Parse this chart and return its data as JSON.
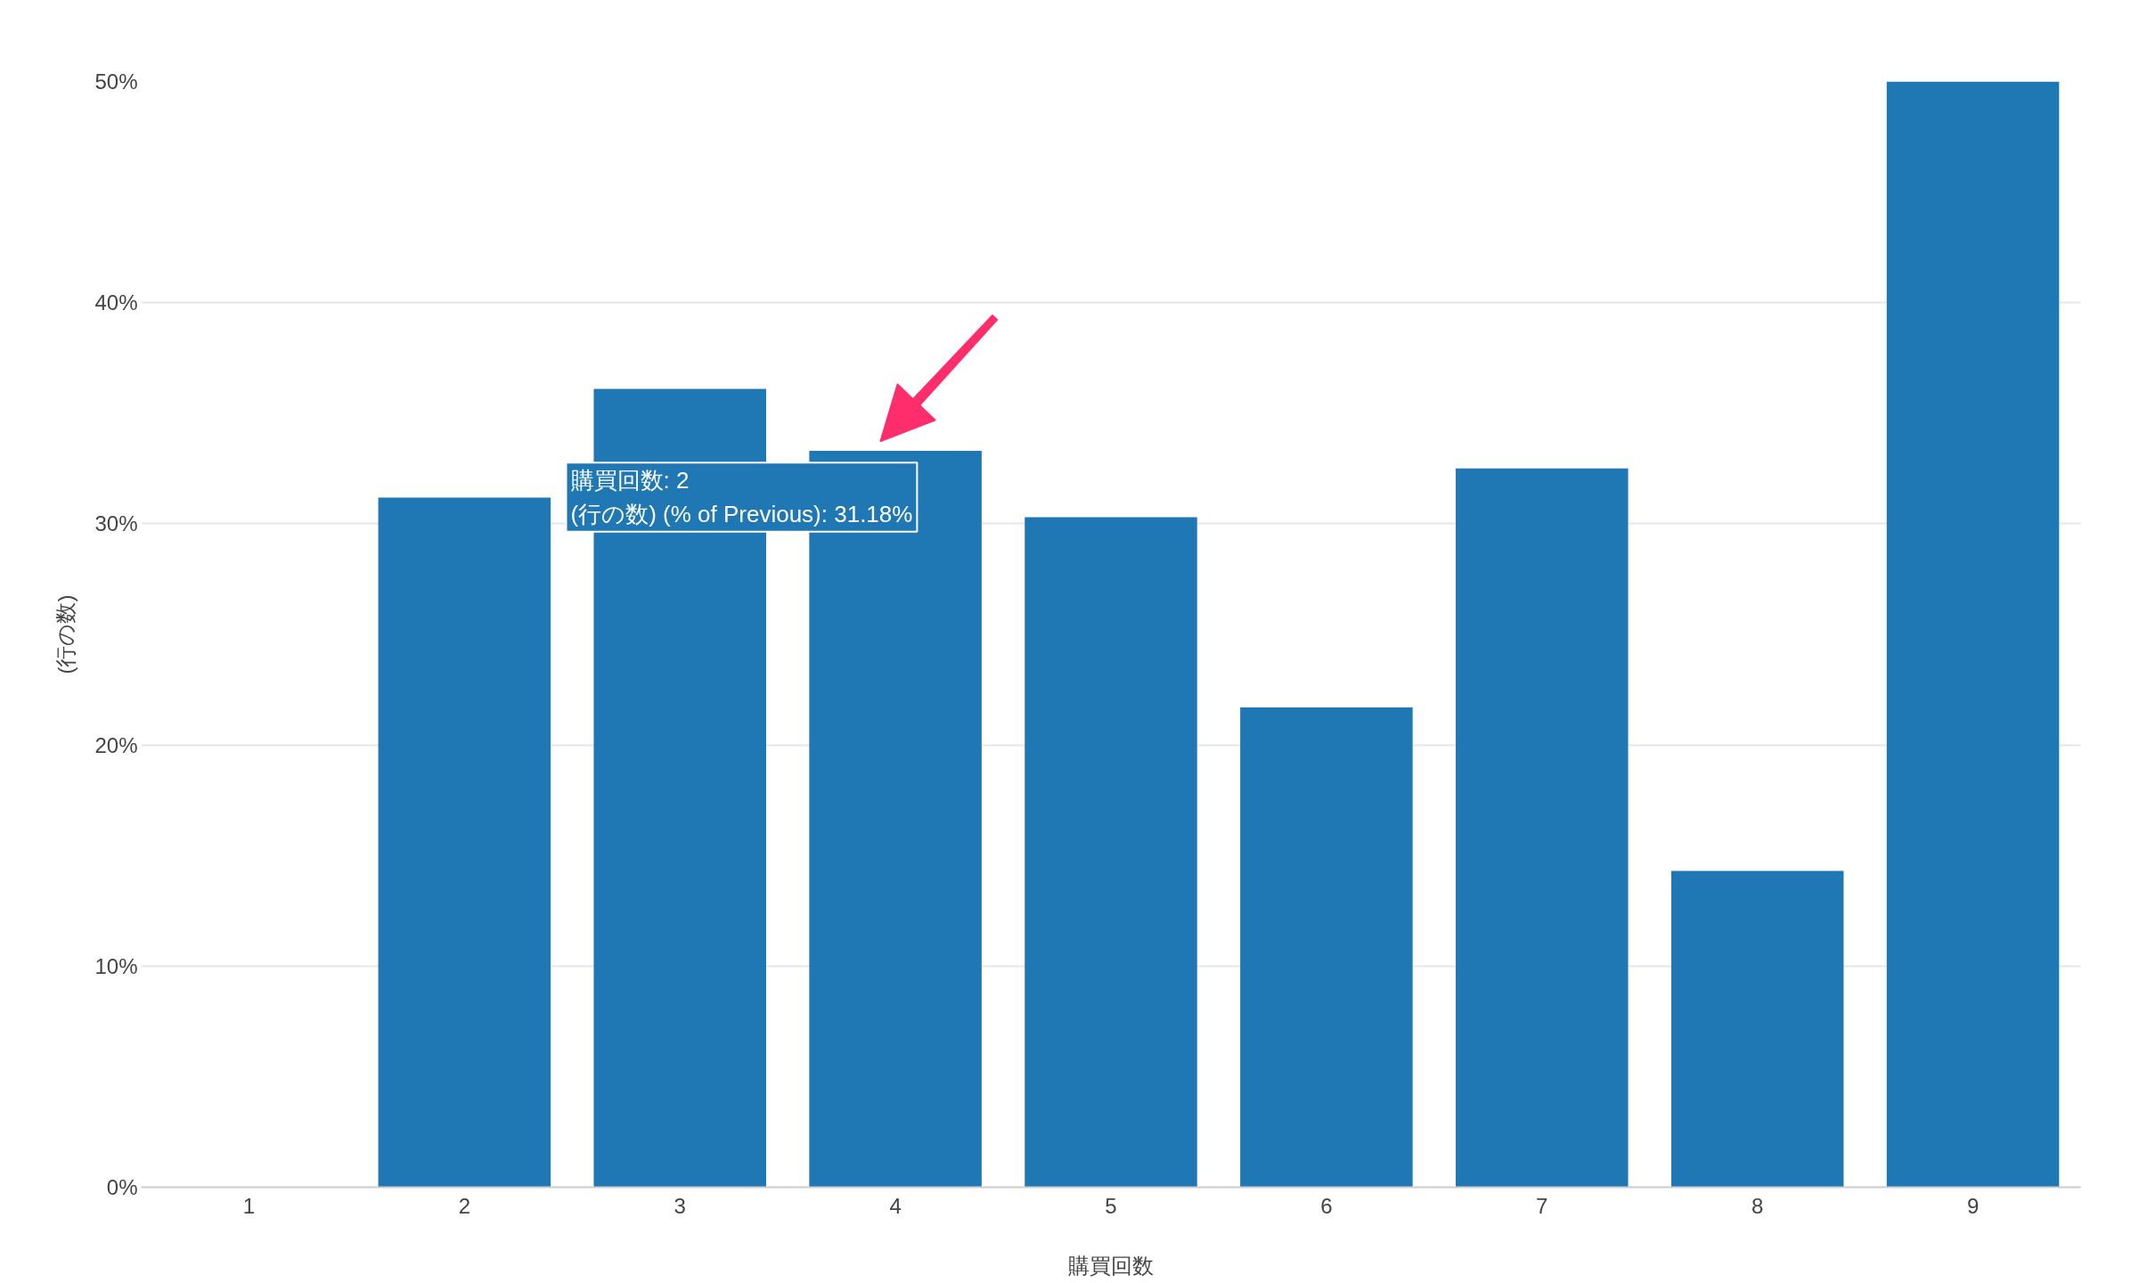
{
  "chart_data": {
    "type": "bar",
    "xlabel": "購買回数",
    "ylabel": "(行の数)",
    "categories": [
      "1",
      "2",
      "3",
      "4",
      "5",
      "6",
      "7",
      "8",
      "9"
    ],
    "values": [
      null,
      31.18,
      36.1,
      33.3,
      30.3,
      21.7,
      32.5,
      14.3,
      50
    ],
    "color": "#1f77b4",
    "ylim": [
      0,
      50
    ],
    "yticks": [
      {
        "value": 0,
        "label": "0%"
      },
      {
        "value": 10,
        "label": "10%"
      },
      {
        "value": 20,
        "label": "20%"
      },
      {
        "value": 30,
        "label": "30%"
      },
      {
        "value": 40,
        "label": "40%"
      },
      {
        "value": 50,
        "label": "50%"
      }
    ],
    "grid": "y",
    "annotations": [
      "購買回数: 2\n(行の数) (% of Previous): 31.18%"
    ]
  }
}
